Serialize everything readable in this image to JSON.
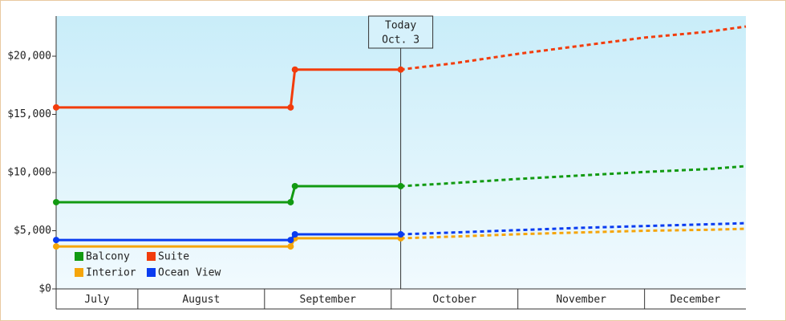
{
  "chart_data": {
    "type": "line",
    "x": [
      0.355,
      2.206,
      2.24,
      3.075,
      3.5,
      4,
      4.5,
      5,
      5.5,
      5.8
    ],
    "xlim": [
      0.355,
      5.8
    ],
    "xticks": [
      1,
      2,
      3,
      4,
      5
    ],
    "categories": [
      "July",
      "August",
      "September",
      "October",
      "November",
      "December"
    ],
    "ylim": [
      0,
      23450
    ],
    "yticks": [
      {
        "value": 0,
        "label": "$0"
      },
      {
        "value": 5000,
        "label": "$5,000"
      },
      {
        "value": 10000,
        "label": "$10,000"
      },
      {
        "value": 15000,
        "label": "$15,000"
      },
      {
        "value": 20000,
        "label": "$20,000"
      }
    ],
    "annotation": {
      "lines": [
        "Today",
        "Oct. 3"
      ],
      "x": 3.075
    },
    "series": [
      {
        "name": "Balcony",
        "color": "#129a12",
        "values": [
          7450,
          7450,
          8830,
          8830,
          9100,
          9450,
          9750,
          10050,
          10300,
          10550
        ]
      },
      {
        "name": "Suite",
        "color": "#f23c0c",
        "values": [
          15600,
          15600,
          18850,
          18850,
          19400,
          20200,
          20900,
          21600,
          22100,
          22550
        ]
      },
      {
        "name": "Interior",
        "color": "#f5a50a",
        "values": [
          3650,
          3650,
          4350,
          4350,
          4500,
          4700,
          4850,
          5000,
          5080,
          5170
        ]
      },
      {
        "name": "Ocean View",
        "color": "#0a3cf0",
        "values": [
          4200,
          4200,
          4690,
          4690,
          4850,
          5050,
          5250,
          5400,
          5550,
          5650
        ]
      }
    ],
    "legend": "lower-left"
  }
}
